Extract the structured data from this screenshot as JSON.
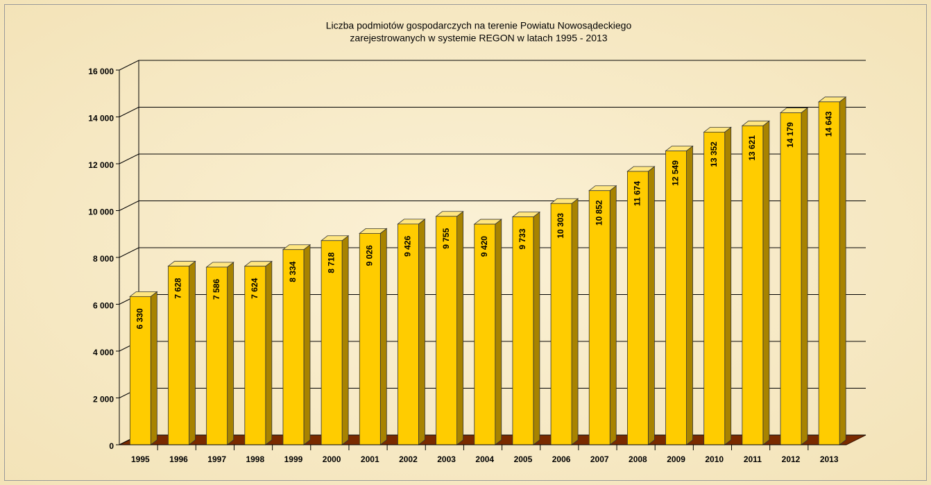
{
  "chart_data": {
    "type": "bar3d",
    "title": [
      "Liczba podmiotów gospodarczych na terenie Powiatu Nowosądeckiego",
      "zarejestrowanych w systemie REGON  w latach 1995 - 2013"
    ],
    "categories": [
      "1995",
      "1996",
      "1997",
      "1998",
      "1999",
      "2000",
      "2001",
      "2002",
      "2003",
      "2004",
      "2005",
      "2006",
      "2007",
      "2008",
      "2009",
      "2010",
      "2011",
      "2012",
      "2013"
    ],
    "values": [
      6330,
      7628,
      7586,
      7624,
      8334,
      8718,
      9026,
      9426,
      9755,
      9420,
      9733,
      10303,
      10852,
      11674,
      12549,
      13352,
      13621,
      14179,
      14643
    ],
    "value_labels": [
      "6 330",
      "7 628",
      "7 586",
      "7 624",
      "8 334",
      "8 718",
      "9 026",
      "9 426",
      "9 755",
      "9 420",
      "9 733",
      "10 303",
      "10 852",
      "11 674",
      "12 549",
      "13 352",
      "13 621",
      "14 179",
      "14 643"
    ],
    "color": "#ffcc00",
    "ylim": [
      0,
      16000
    ],
    "yticks": [
      0,
      {
        "value": 2000,
        "label": "2 000"
      },
      {
        "value": 4000,
        "label": "4 000"
      },
      {
        "value": 6000,
        "label": "6 000"
      },
      {
        "value": 8000,
        "label": "8 000"
      },
      {
        "value": 10000,
        "label": "10 000"
      },
      {
        "value": 12000,
        "label": "12 000"
      },
      {
        "value": 14000,
        "label": "14 000"
      },
      {
        "value": 16000,
        "label": "16 000"
      }
    ],
    "grid": true
  }
}
